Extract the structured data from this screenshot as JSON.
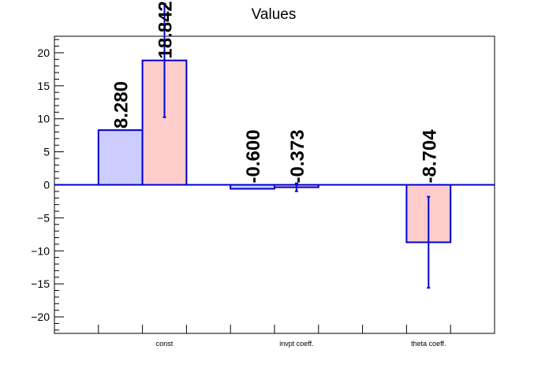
{
  "chart_data": {
    "type": "bar",
    "title": "Values",
    "xlabel": "",
    "ylabel": "",
    "ylim": [
      -22.5,
      22.5
    ],
    "yticks": [
      -20,
      -15,
      -10,
      -5,
      0,
      5,
      10,
      15,
      20
    ],
    "categories": [
      "const",
      "invpt coeff.",
      "theta coeff."
    ],
    "series": [
      {
        "color_fill": "#ccccff",
        "color_edge": "#0000cc",
        "values": [
          8.28,
          -0.6,
          null
        ],
        "errors": [
          0,
          0,
          null
        ],
        "labels": [
          "8.280",
          "-0.600",
          null
        ]
      },
      {
        "color_fill": "#ffcccc",
        "color_edge": "#0000cc",
        "values": [
          18.842,
          -0.373,
          -8.704
        ],
        "errors": [
          8.6,
          0.6,
          6.9
        ],
        "labels": [
          "18.842",
          "-0.373",
          "-8.704"
        ]
      }
    ],
    "grid": false,
    "zero_line": true,
    "legend": "none"
  }
}
